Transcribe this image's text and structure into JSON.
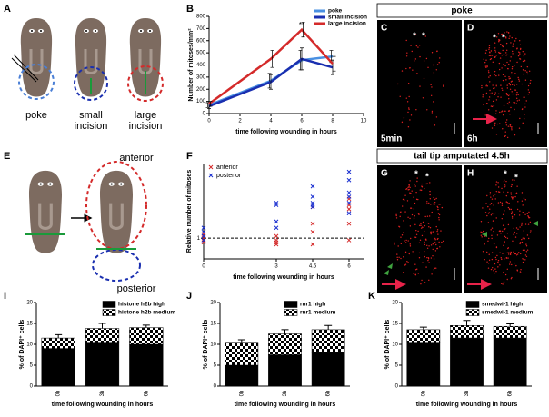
{
  "panel_labels": [
    "A",
    "B",
    "C",
    "D",
    "E",
    "F",
    "G",
    "H",
    "I",
    "J",
    "K"
  ],
  "panel_a": {
    "labels": [
      "poke",
      "small\nincision",
      "large\nincision"
    ]
  },
  "panel_e": {
    "labels": [
      "anterior",
      "posterior"
    ]
  },
  "images": {
    "header_top": "poke",
    "header_bottom": "tail tip amputated 4.5h",
    "c_label": "5min",
    "d_label": "6h",
    "star": "*"
  },
  "chart_data": [
    {
      "type": "line",
      "x": [
        0,
        4,
        6,
        8
      ],
      "xlim": [
        0,
        10
      ],
      "xticks": [
        0,
        2,
        4,
        6,
        8,
        10
      ],
      "ylim": [
        0,
        800
      ],
      "yticks": [
        0,
        100,
        200,
        300,
        400,
        500,
        600,
        700,
        800
      ],
      "xlabel": "time following wounding in hours",
      "ylabel": "Number of mitoses/mm²",
      "annotations": [
        {
          "text": "**",
          "x": 6
        }
      ],
      "series": [
        {
          "name": "poke",
          "color": "#4a90e2",
          "values": [
            70,
            270,
            440,
            470
          ],
          "errors": [
            20,
            60,
            80,
            50
          ]
        },
        {
          "name": "small incision",
          "color": "#1a2fb0",
          "values": [
            60,
            260,
            450,
            380
          ],
          "errors": [
            20,
            60,
            90,
            60
          ]
        },
        {
          "name": "large incision",
          "color": "#d42a2a",
          "values": [
            80,
            450,
            690,
            410
          ],
          "errors": [
            20,
            70,
            60,
            60
          ]
        }
      ]
    },
    {
      "type": "scatter",
      "xlim": [
        0,
        6.6
      ],
      "xticks": [
        0,
        3,
        4.5,
        6
      ],
      "ylim": [
        0,
        4.6
      ],
      "yticks": [
        1
      ],
      "reference_line": 1,
      "xlabel": "time following wounding in hours",
      "ylabel": "Relative number of mitoses",
      "series": [
        {
          "name": "anterior",
          "color": "#d42a2a",
          "x": [
            0,
            0,
            0,
            0,
            0,
            3,
            3,
            3,
            3,
            4.5,
            4.5,
            4.5,
            4.5,
            6,
            6,
            6,
            6,
            6
          ],
          "values": [
            1,
            0.9,
            1.1,
            1.2,
            0.8,
            0.7,
            0.9,
            1.1,
            0.8,
            2.5,
            1.3,
            0.7,
            1.7,
            2.9,
            2.6,
            2.4,
            0.9,
            1.7
          ]
        },
        {
          "name": "posterior",
          "color": "#1a2fd0",
          "x": [
            0,
            0,
            0,
            0,
            3,
            3,
            3,
            3,
            4.5,
            4.5,
            4.5,
            4.5,
            4.5,
            6,
            6,
            6,
            6,
            6,
            6
          ],
          "values": [
            1.5,
            1.3,
            1.1,
            0.9,
            2.7,
            2.6,
            1.8,
            1.5,
            3.5,
            3.0,
            2.6,
            2.5,
            2.7,
            4.2,
            3.8,
            3.2,
            3.0,
            2.7,
            2.2
          ]
        }
      ]
    },
    {
      "type": "stacked-bar",
      "categories": [
        "0h",
        "3h",
        "6h"
      ],
      "ylim": [
        0,
        20
      ],
      "yticks": [
        0,
        5,
        10,
        15,
        20
      ],
      "xlabel": "time following wounding in hours",
      "ylabel": "% of DAPI⁺ cells",
      "series": [
        {
          "name": "histone h2b high",
          "color": "#000000",
          "values": [
            9,
            10.5,
            10
          ]
        },
        {
          "name": "histone h2b medium",
          "color": "checker",
          "values": [
            2.5,
            3.3,
            4
          ],
          "errors": [
            0.8,
            1.2,
            0.6
          ]
        }
      ]
    },
    {
      "type": "stacked-bar",
      "categories": [
        "0h",
        "3h",
        "6h"
      ],
      "ylim": [
        0,
        20
      ],
      "yticks": [
        0,
        5,
        10,
        15,
        20
      ],
      "xlabel": "time following wounding in hours",
      "ylabel": "% of DAPI⁺ cells",
      "series": [
        {
          "name": "rnr1 high",
          "color": "#000000",
          "values": [
            5,
            7.5,
            8
          ]
        },
        {
          "name": "rnr1 medium",
          "color": "checker",
          "values": [
            5.5,
            5,
            5.5
          ],
          "errors": [
            0.6,
            1,
            1
          ]
        }
      ]
    },
    {
      "type": "stacked-bar",
      "categories": [
        "0h",
        "3h",
        "6h"
      ],
      "ylim": [
        0,
        20
      ],
      "yticks": [
        0,
        5,
        10,
        15,
        20
      ],
      "xlabel": "time following wounding in hours",
      "ylabel": "% of DAPI⁺ cells",
      "series": [
        {
          "name": "smedwi-1 high",
          "color": "#000000",
          "values": [
            10.5,
            11.5,
            11.5
          ]
        },
        {
          "name": "smedwi-1 medium",
          "color": "checker",
          "values": [
            3,
            3,
            2.8
          ],
          "errors": [
            0.6,
            1.2,
            0.6
          ]
        }
      ]
    }
  ]
}
